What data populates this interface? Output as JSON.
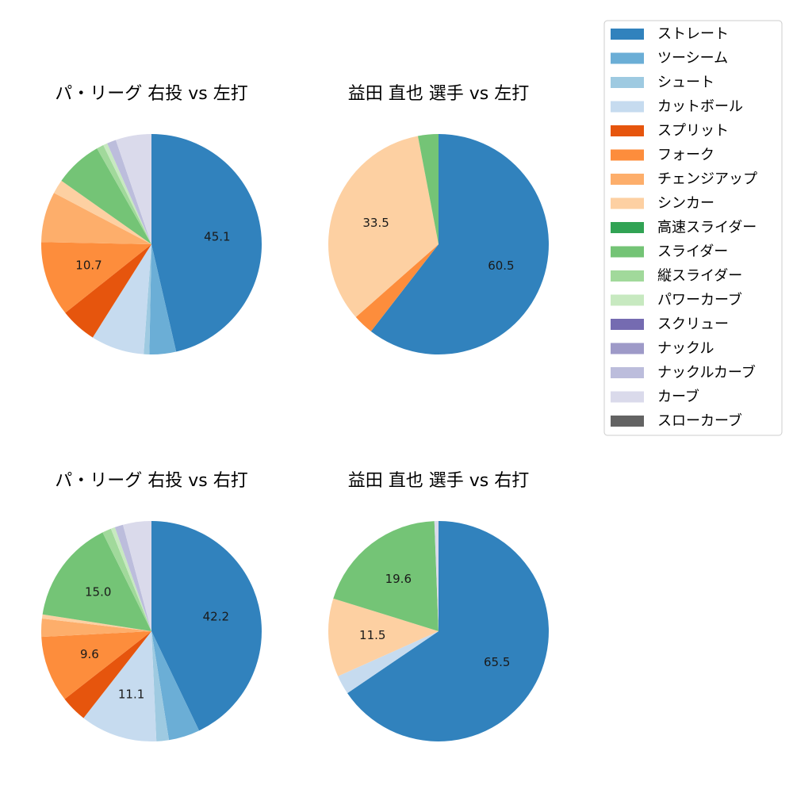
{
  "legend": {
    "items": [
      {
        "label": "ストレート",
        "color": "#3182bd"
      },
      {
        "label": "ツーシーム",
        "color": "#6baed6"
      },
      {
        "label": "シュート",
        "color": "#9ecae1"
      },
      {
        "label": "カットボール",
        "color": "#c6dbef"
      },
      {
        "label": "スプリット",
        "color": "#e6550d"
      },
      {
        "label": "フォーク",
        "color": "#fd8d3c"
      },
      {
        "label": "チェンジアップ",
        "color": "#fdae6b"
      },
      {
        "label": "シンカー",
        "color": "#fdd0a2"
      },
      {
        "label": "高速スライダー",
        "color": "#31a354"
      },
      {
        "label": "スライダー",
        "color": "#74c476"
      },
      {
        "label": "縦スライダー",
        "color": "#a1d99b"
      },
      {
        "label": "パワーカーブ",
        "color": "#c7e9c0"
      },
      {
        "label": "スクリュー",
        "color": "#756bb1"
      },
      {
        "label": "ナックル",
        "color": "#9e9ac8"
      },
      {
        "label": "ナックルカーブ",
        "color": "#bcbddc"
      },
      {
        "label": "カーブ",
        "color": "#dadaeb"
      },
      {
        "label": "スローカーブ",
        "color": "#636363"
      }
    ]
  },
  "chart_data": [
    {
      "type": "pie",
      "title": "パ・リーグ 右投 vs 左打",
      "slices": [
        {
          "category": "ストレート",
          "value": 45.1,
          "label": "45.1"
        },
        {
          "category": "ツーシーム",
          "value": 3.8
        },
        {
          "category": "シュート",
          "value": 0.8
        },
        {
          "category": "カットボール",
          "value": 7.6
        },
        {
          "category": "スプリット",
          "value": 5.2
        },
        {
          "category": "フォーク",
          "value": 10.7,
          "label": "10.7"
        },
        {
          "category": "チェンジアップ",
          "value": 7.2
        },
        {
          "category": "シンカー",
          "value": 2.0
        },
        {
          "category": "スライダー",
          "value": 6.8
        },
        {
          "category": "縦スライダー",
          "value": 1.0
        },
        {
          "category": "パワーカーブ",
          "value": 0.6
        },
        {
          "category": "ナックルカーブ",
          "value": 1.3
        },
        {
          "category": "カーブ",
          "value": 5.1
        }
      ]
    },
    {
      "type": "pie",
      "title": "益田 直也 選手 vs 左打",
      "slices": [
        {
          "category": "ストレート",
          "value": 60.5,
          "label": "60.5"
        },
        {
          "category": "フォーク",
          "value": 3.0
        },
        {
          "category": "シンカー",
          "value": 33.5,
          "label": "33.5"
        },
        {
          "category": "スライダー",
          "value": 3.0
        }
      ]
    },
    {
      "type": "pie",
      "title": "パ・リーグ 右投 vs 右打",
      "slices": [
        {
          "category": "ストレート",
          "value": 42.2,
          "label": "42.2"
        },
        {
          "category": "ツーシーム",
          "value": 4.5
        },
        {
          "category": "シュート",
          "value": 1.8
        },
        {
          "category": "カットボール",
          "value": 11.1,
          "label": "11.1"
        },
        {
          "category": "スプリット",
          "value": 3.8
        },
        {
          "category": "フォーク",
          "value": 9.6,
          "label": "9.6"
        },
        {
          "category": "チェンジアップ",
          "value": 2.6
        },
        {
          "category": "シンカー",
          "value": 0.6
        },
        {
          "category": "スライダー",
          "value": 15.0,
          "label": "15.0"
        },
        {
          "category": "縦スライダー",
          "value": 1.3
        },
        {
          "category": "パワーカーブ",
          "value": 0.6
        },
        {
          "category": "ナックルカーブ",
          "value": 1.2
        },
        {
          "category": "カーブ",
          "value": 4.1
        }
      ]
    },
    {
      "type": "pie",
      "title": "益田 直也 選手 vs 右打",
      "slices": [
        {
          "category": "ストレート",
          "value": 65.5,
          "label": "65.5"
        },
        {
          "category": "カットボール",
          "value": 2.8
        },
        {
          "category": "シンカー",
          "value": 11.5,
          "label": "11.5"
        },
        {
          "category": "スライダー",
          "value": 19.6,
          "label": "19.6"
        },
        {
          "category": "カーブ",
          "value": 0.6
        }
      ]
    }
  ]
}
